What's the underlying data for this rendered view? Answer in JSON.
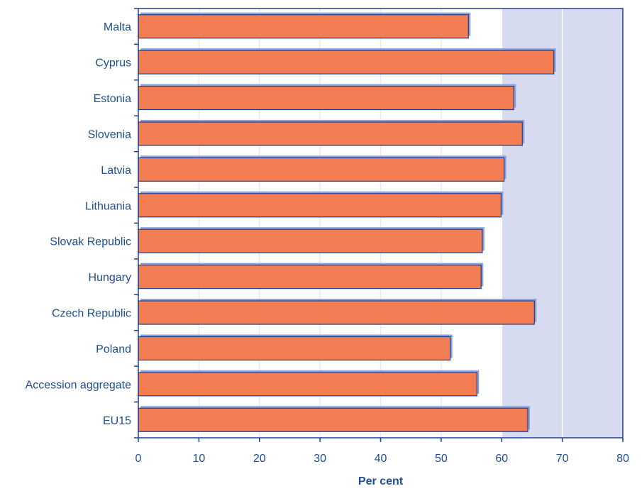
{
  "chart_data": {
    "type": "bar",
    "orientation": "horizontal",
    "categories": [
      "Malta",
      "Cyprus",
      "Estonia",
      "Slovenia",
      "Latvia",
      "Lithuania",
      "Slovak Republic",
      "Hungary",
      "Czech Republic",
      "Poland",
      "Accession aggregate",
      "EU15"
    ],
    "values": [
      54.5,
      68.6,
      62.0,
      63.4,
      60.4,
      59.9,
      56.8,
      56.6,
      65.4,
      51.5,
      55.9,
      64.3
    ],
    "title": "",
    "xlabel": "Per cent",
    "ylabel": "",
    "xlim": [
      0,
      80
    ],
    "xticks": [
      "0",
      "10",
      "20",
      "30",
      "40",
      "50",
      "60",
      "70",
      "80"
    ],
    "grid": "vertical",
    "colors": {
      "bar_fill": "#f27d52",
      "bar_edge": "#1f3f8f",
      "bar_shadow": "#8ea4d9",
      "plot_background": "#d6dbf0",
      "plot_background_base": "#ffffff",
      "grid": "#ffffff",
      "axis": "#1f3f8f",
      "text": "#1f4f8f"
    }
  }
}
